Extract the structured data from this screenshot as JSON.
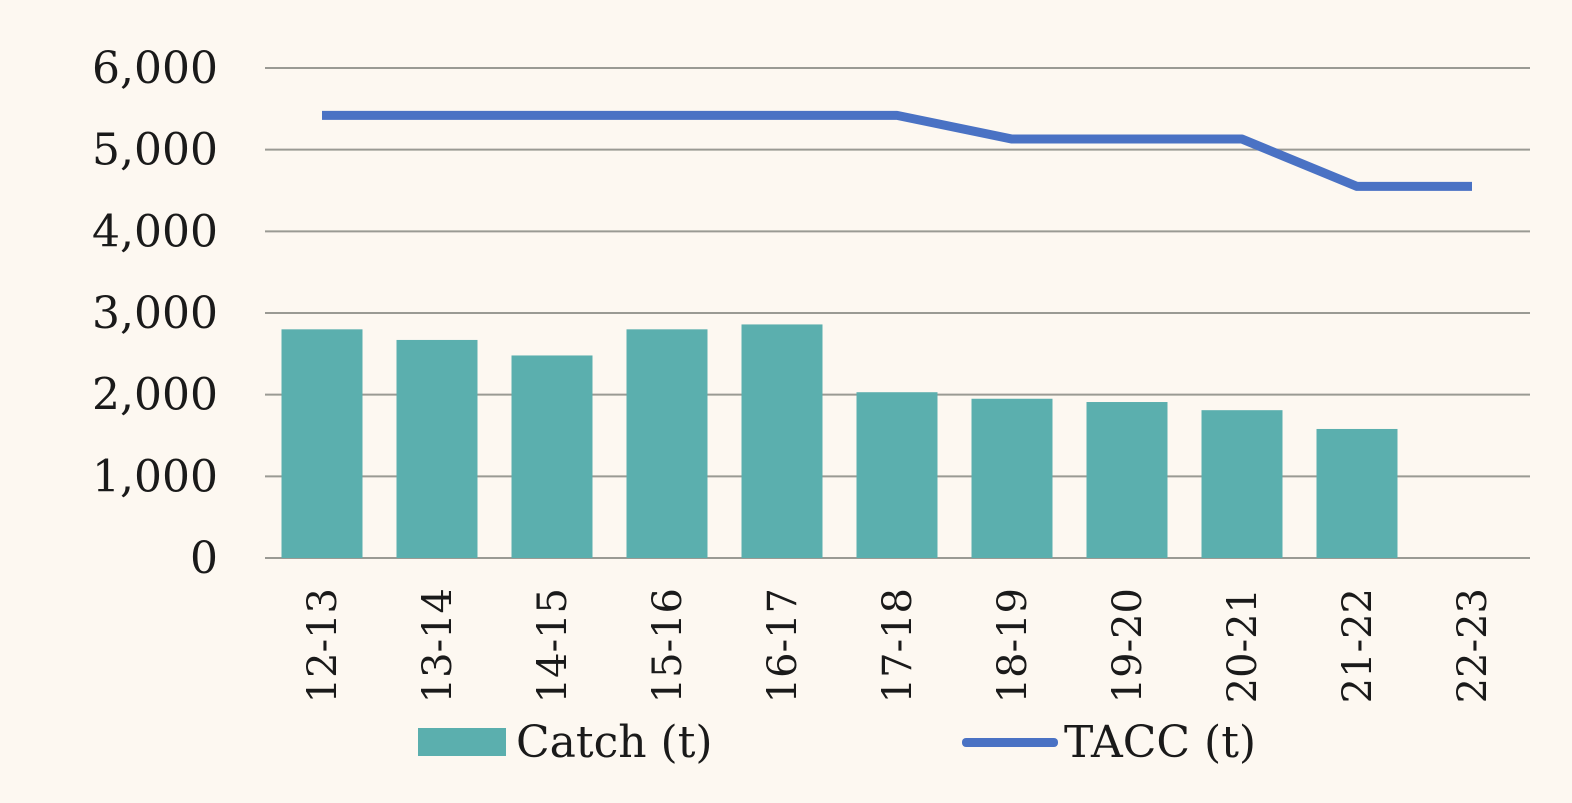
{
  "chart_data": {
    "type": "bar",
    "categories": [
      "12-13",
      "13-14",
      "14-15",
      "15-16",
      "16-17",
      "17-18",
      "18-19",
      "19-20",
      "20-21",
      "21-22",
      "22-23"
    ],
    "series": [
      {
        "name": "Catch (t)",
        "kind": "bar",
        "color": "#5bafae",
        "values": [
          2800,
          2670,
          2480,
          2800,
          2860,
          2030,
          1950,
          1910,
          1810,
          1580,
          null
        ]
      },
      {
        "name": "TACC (t)",
        "kind": "line",
        "color": "#4a72c4",
        "values": [
          5420,
          5420,
          5420,
          5420,
          5420,
          5420,
          5130,
          5130,
          5130,
          4550,
          4550
        ]
      }
    ],
    "yticks": [
      "0",
      "1,000",
      "2,000",
      "3,000",
      "4,000",
      "5,000",
      "6,000"
    ],
    "ylim": [
      0,
      6000
    ],
    "grid": true,
    "legend_position": "bottom",
    "grid_color": "#9a9a94"
  }
}
